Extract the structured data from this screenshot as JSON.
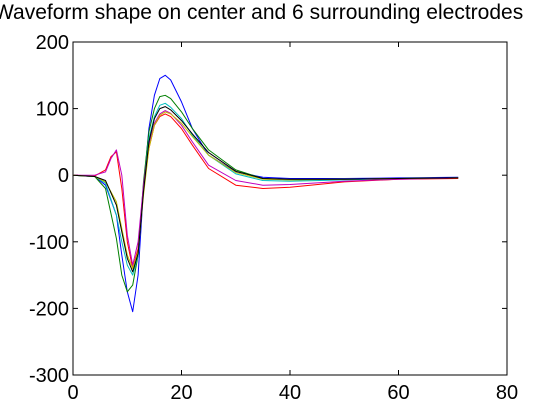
{
  "chart_data": {
    "type": "line",
    "title": "Waveform shape on center and 6 surrounding electrodes",
    "xlabel": "",
    "ylabel": "",
    "xlim": [
      0,
      80
    ],
    "ylim": [
      -300,
      200
    ],
    "xticks": [
      0,
      20,
      40,
      60,
      80
    ],
    "yticks": [
      -300,
      -200,
      -100,
      0,
      100,
      200
    ],
    "grid": false,
    "legend": "none",
    "series": [
      {
        "color": "#0000ff",
        "x": [
          0,
          4,
          6,
          8,
          9,
          10,
          11,
          12,
          13,
          14,
          15,
          16,
          17,
          18,
          20,
          22,
          25,
          30,
          35,
          40,
          50,
          60,
          71
        ],
        "y": [
          0,
          -2,
          -15,
          -60,
          -120,
          -175,
          -205,
          -150,
          -20,
          70,
          120,
          145,
          150,
          143,
          110,
          70,
          30,
          5,
          -3,
          -5,
          -5,
          -4,
          -3
        ]
      },
      {
        "color": "#007f00",
        "x": [
          0,
          4,
          6,
          8,
          9,
          10,
          11,
          12,
          13,
          14,
          15,
          16,
          17,
          18,
          20,
          22,
          25,
          30,
          35,
          40,
          50,
          60,
          71
        ],
        "y": [
          0,
          -2,
          -20,
          -95,
          -150,
          -175,
          -165,
          -120,
          -10,
          65,
          100,
          118,
          120,
          115,
          95,
          70,
          38,
          8,
          -5,
          -7,
          -6,
          -5,
          -4
        ]
      },
      {
        "color": "#ff0000",
        "x": [
          0,
          4,
          6,
          7,
          8,
          9,
          10,
          11,
          12,
          13,
          14,
          15,
          16,
          17,
          18,
          20,
          22,
          25,
          30,
          35,
          40,
          50,
          60,
          71
        ],
        "y": [
          0,
          -1,
          8,
          28,
          35,
          -20,
          -100,
          -140,
          -110,
          -20,
          40,
          75,
          88,
          92,
          88,
          70,
          45,
          10,
          -15,
          -20,
          -18,
          -10,
          -6,
          -5
        ]
      },
      {
        "color": "#00bfbf",
        "x": [
          0,
          4,
          6,
          8,
          9,
          10,
          11,
          12,
          13,
          14,
          15,
          16,
          17,
          18,
          20,
          22,
          25,
          30,
          35,
          40,
          50,
          60,
          71
        ],
        "y": [
          0,
          -2,
          -12,
          -60,
          -100,
          -135,
          -150,
          -120,
          -20,
          55,
          88,
          105,
          108,
          102,
          85,
          60,
          30,
          2,
          -8,
          -9,
          -7,
          -5,
          -4
        ]
      },
      {
        "color": "#bf00bf",
        "x": [
          0,
          4,
          6,
          7,
          8,
          9,
          10,
          11,
          12,
          13,
          14,
          15,
          16,
          17,
          18,
          20,
          22,
          25,
          30,
          35,
          40,
          50,
          60,
          71
        ],
        "y": [
          0,
          0,
          5,
          25,
          38,
          0,
          -90,
          -135,
          -100,
          -15,
          45,
          78,
          92,
          97,
          93,
          75,
          50,
          15,
          -8,
          -15,
          -14,
          -9,
          -6,
          -4
        ]
      },
      {
        "color": "#bfbf00",
        "x": [
          0,
          4,
          6,
          8,
          9,
          10,
          11,
          12,
          13,
          14,
          15,
          16,
          17,
          18,
          20,
          22,
          25,
          30,
          35,
          40,
          50,
          60,
          71
        ],
        "y": [
          0,
          -2,
          -10,
          -40,
          -80,
          -120,
          -140,
          -115,
          -30,
          40,
          75,
          90,
          95,
          92,
          78,
          58,
          30,
          4,
          -6,
          -7,
          -6,
          -5,
          -4
        ]
      },
      {
        "color": "#000000",
        "x": [
          0,
          4,
          6,
          8,
          9,
          10,
          11,
          12,
          13,
          14,
          15,
          16,
          17,
          18,
          20,
          22,
          25,
          30,
          35,
          40,
          50,
          60,
          71
        ],
        "y": [
          0,
          -2,
          -8,
          -45,
          -85,
          -125,
          -145,
          -118,
          -25,
          50,
          85,
          100,
          103,
          98,
          82,
          62,
          34,
          6,
          -5,
          -6,
          -6,
          -5,
          -4
        ]
      }
    ]
  }
}
